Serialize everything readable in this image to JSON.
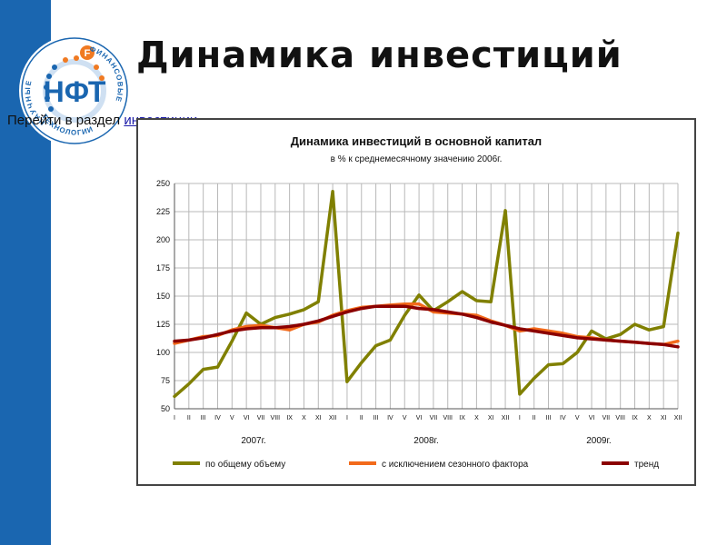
{
  "page": {
    "title": "Динамика инвестиций",
    "nav_prefix": "Перейти в раздел ",
    "nav_link": "инвестиции",
    "logo": {
      "center_text": "НФТ",
      "letter_badge": "F",
      "ring_text_left": "НАУЧНЫЕ",
      "ring_text_right": "ФИНАНСОВЫЕ",
      "ring_text_bottom": "ТЕХНОЛОГИИ",
      "colors": {
        "blue": "#1a66b0",
        "orange": "#f07a22"
      }
    },
    "colors": {
      "sidebar": "#1a66b0"
    }
  },
  "chart_data": {
    "type": "line",
    "title": "Динамика инвестиций в основной капитал",
    "subtitle": "в % к среднемесячному значению 2006г.",
    "ylim": [
      50,
      250
    ],
    "yticks": [
      50,
      75,
      100,
      125,
      150,
      175,
      200,
      225,
      250
    ],
    "grid": true,
    "months": [
      "I",
      "II",
      "III",
      "IV",
      "V",
      "VI",
      "VII",
      "VIII",
      "IX",
      "X",
      "XI",
      "XII",
      "I",
      "II",
      "III",
      "IV",
      "V",
      "VI",
      "VII",
      "VIII",
      "IX",
      "X",
      "XI",
      "XII",
      "I",
      "II",
      "III",
      "IV",
      "V",
      "VI",
      "VII",
      "VIII",
      "IX",
      "X",
      "XI",
      "XII"
    ],
    "year_labels": [
      "2007г.",
      "2008г.",
      "2009г."
    ],
    "legend_position": "bottom",
    "series": [
      {
        "name": "по общему объему",
        "color": "#808000",
        "values": [
          61,
          72,
          85,
          87,
          110,
          135,
          125,
          131,
          134,
          138,
          145,
          243,
          74,
          91,
          106,
          111,
          133,
          151,
          137,
          145,
          154,
          146,
          145,
          226,
          63,
          77,
          89,
          90,
          100,
          119,
          112,
          116,
          125,
          120,
          123,
          206
        ]
      },
      {
        "name": "с исключением сезонного фактора",
        "color": "#f26a1b",
        "values": [
          108,
          111,
          114,
          115,
          120,
          123,
          124,
          122,
          120,
          125,
          127,
          133,
          137,
          140,
          141,
          142,
          143,
          143,
          136,
          135,
          134,
          133,
          128,
          124,
          119,
          121,
          119,
          117,
          114,
          113,
          111,
          110,
          109,
          108,
          107,
          110
        ]
      },
      {
        "name": "тренд",
        "color": "#8b0000",
        "values": [
          110,
          111,
          113,
          116,
          119,
          121,
          122,
          122,
          123,
          125,
          128,
          132,
          136,
          139,
          141,
          141,
          141,
          139,
          138,
          136,
          134,
          131,
          127,
          124,
          121,
          119,
          117,
          115,
          113,
          112,
          111,
          110,
          109,
          108,
          107,
          105
        ]
      }
    ]
  }
}
